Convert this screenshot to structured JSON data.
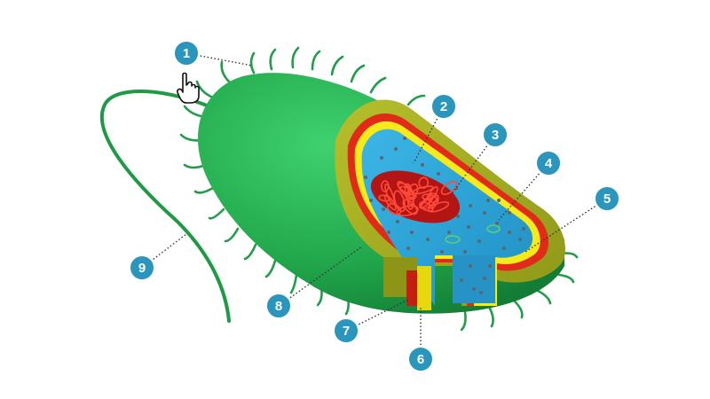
{
  "colors": {
    "capsule_light": "#2fc25e",
    "capsule_dark": "#14893a",
    "capsule_layer": "#a4ad1f",
    "cell_wall": "#e22a18",
    "plasma_membrane": "#f5ea1a",
    "cytoplasm": "#2aa3d6",
    "nucleoid": "#c81818",
    "marker_fill": "#2a95bd",
    "leader_line": "#333333"
  },
  "markers": [
    {
      "id": "1",
      "label": "1"
    },
    {
      "id": "2",
      "label": "2"
    },
    {
      "id": "3",
      "label": "3"
    },
    {
      "id": "4",
      "label": "4"
    },
    {
      "id": "5",
      "label": "5"
    },
    {
      "id": "6",
      "label": "6"
    },
    {
      "id": "7",
      "label": "7"
    },
    {
      "id": "8",
      "label": "8"
    },
    {
      "id": "9",
      "label": "9"
    }
  ],
  "cursor": {
    "icon": "hand-pointer-icon"
  }
}
